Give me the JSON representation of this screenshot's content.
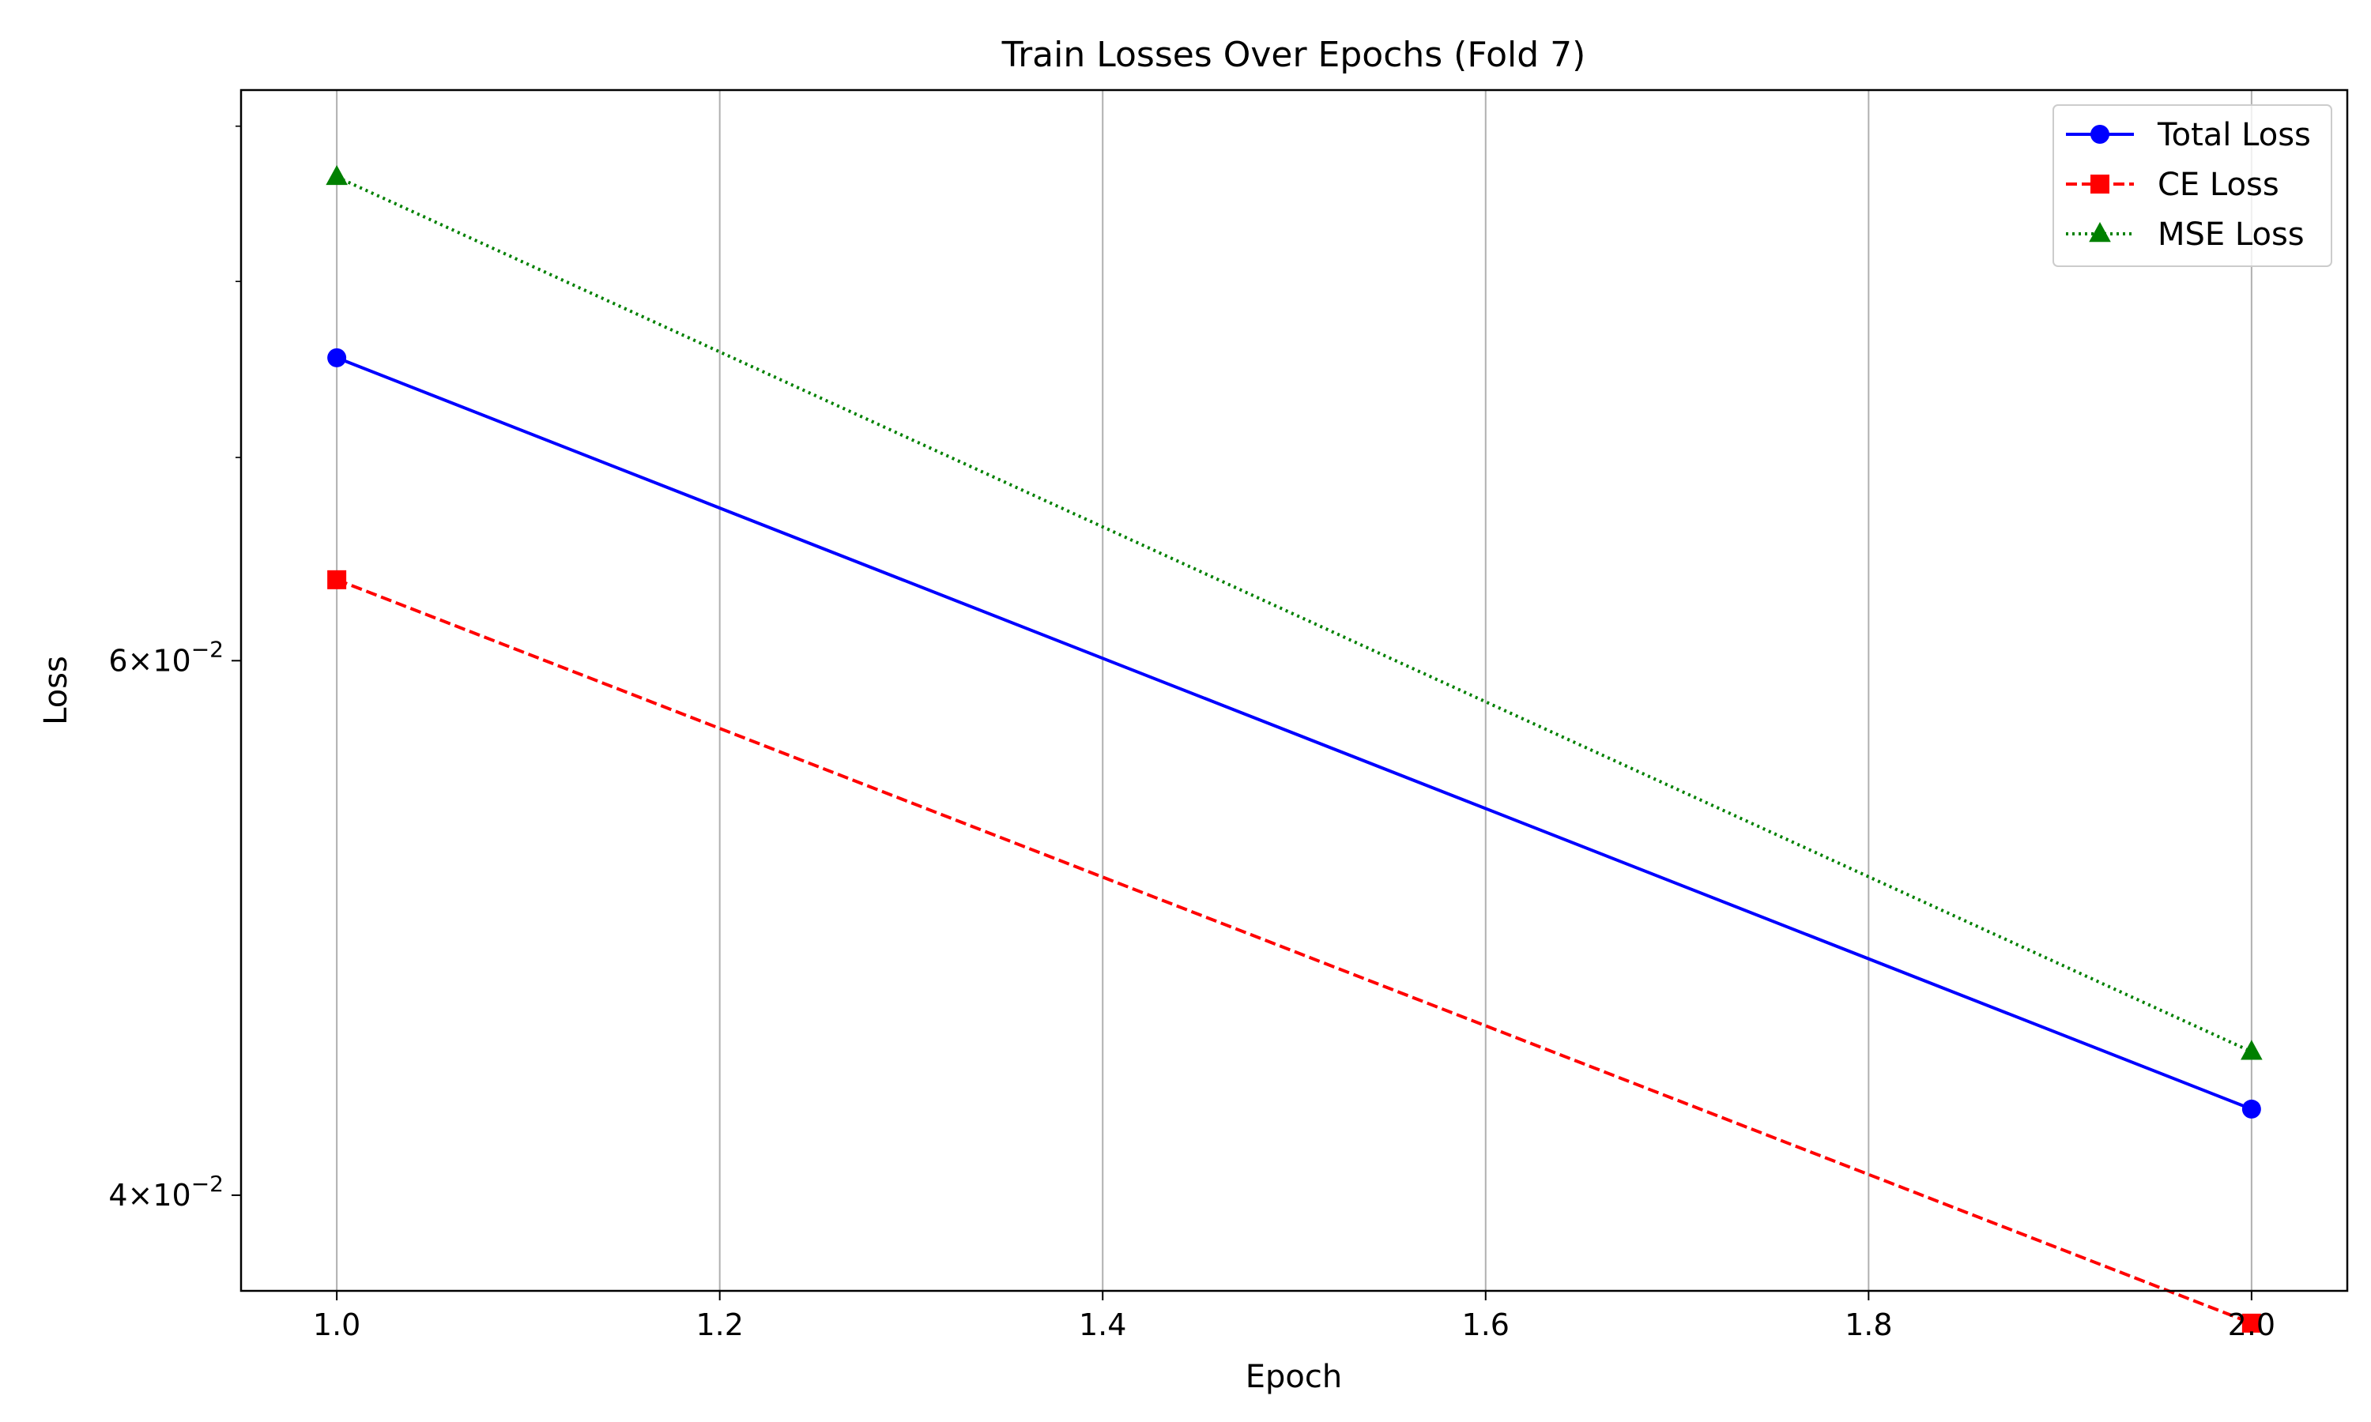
{
  "chart_data": {
    "type": "line",
    "title": "Train Losses Over Epochs (Fold 7)",
    "xlabel": "Epoch",
    "ylabel": "Loss",
    "x": [
      1.0,
      2.0
    ],
    "xlim": [
      0.95,
      2.05
    ],
    "xticks": [
      "1.0",
      "1.2",
      "1.4",
      "1.6",
      "1.8",
      "2.0"
    ],
    "xtick_values": [
      1.0,
      1.2,
      1.4,
      1.6,
      1.8,
      2.0
    ],
    "yscale": "log",
    "ylim": [
      0.0372,
      0.0925
    ],
    "yticks": [
      {
        "value": 0.04,
        "mantissa": "4",
        "exp": "−2"
      },
      {
        "value": 0.06,
        "mantissa": "6",
        "exp": "−2"
      }
    ],
    "y_minor_ticks": [
      0.07,
      0.08,
      0.09
    ],
    "grid": "x-major",
    "legend": "top-right",
    "series": [
      {
        "name": "Total Loss",
        "values": [
          0.0755,
          0.0427
        ],
        "color": "#0000ff",
        "marker": "circle",
        "linestyle": "solid"
      },
      {
        "name": "CE Loss",
        "values": [
          0.0638,
          0.0363
        ],
        "color": "#ff0000",
        "marker": "square",
        "linestyle": "dashed"
      },
      {
        "name": "MSE Loss",
        "values": [
          0.0866,
          0.0446
        ],
        "color": "#008000",
        "marker": "triangle",
        "linestyle": "dotted"
      }
    ]
  }
}
